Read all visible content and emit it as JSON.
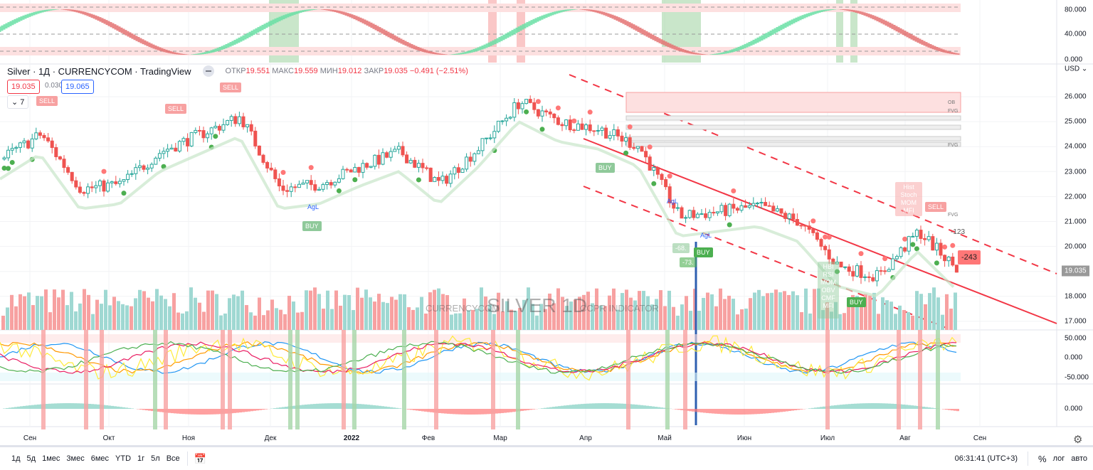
{
  "header": {
    "symbol": "Silver · 1Д · CURRENCYCOM · TradingView",
    "open_label": "ОТКР",
    "open": "19.551",
    "high_label": "МАКС",
    "high": "19.559",
    "low_label": "МИН",
    "low": "19.012",
    "close_label": "ЗАКР",
    "close": "19.035",
    "change": "−0.491 (−2.51%)"
  },
  "bid": "19.035",
  "spread": "0.030",
  "ask": "19.065",
  "indicators_collapsed": "7",
  "currency": "USD",
  "watermark": {
    "left": "CURRENCYCOM",
    "main": "SILVER 1D",
    "right": "CCPR INDICATOR"
  },
  "annotations": {
    "sell": "SELL",
    "buy": "BUY",
    "hist": "Hist Stoch MOM MFI",
    "neg243": "-243",
    "neg123": "-123",
    "fvg": "FVG",
    "ob": "OB",
    "agl": "AgL",
    "v68": "-68.",
    "v73": "-73.",
    "hist2": "HBI RSI MOM OBV CMF MFI"
  },
  "chart_data": {
    "type": "candlestick",
    "title": "Silver · 1Д · CURRENCYCOM",
    "top_axis": [
      "80.000",
      "40.000",
      "0.000"
    ],
    "price_axis": [
      "26.000",
      "25.000",
      "24.000",
      "23.000",
      "22.000",
      "21.000",
      "20.000",
      "18.000",
      "17.000"
    ],
    "price_range": [
      17,
      26
    ],
    "last_price": "19.035",
    "osc_axis": [
      "50.000",
      "0.000",
      "-50.000"
    ],
    "bottom_axis": [
      "0.000"
    ],
    "months": [
      "Сен",
      "Окт",
      "Ноя",
      "Дек",
      "2022",
      "Фев",
      "Мар",
      "Апр",
      "Май",
      "Июн",
      "Июл",
      "Авг",
      "Сен"
    ],
    "approx_close_path": [
      23.5,
      24.5,
      22.3,
      22.5,
      23.8,
      24.5,
      25.2,
      22.3,
      22.5,
      23.2,
      23.8,
      22.5,
      24.0,
      25.8,
      25.0,
      24.7,
      24.0,
      21.2,
      21.4,
      21.6,
      21.0,
      19.2,
      18.8,
      20.6,
      19.035
    ],
    "colors": {
      "up": "#26a69a",
      "down": "#ef5350",
      "trend": "#f23645"
    }
  },
  "toolbar": {
    "ranges": [
      "1д",
      "5д",
      "1мес",
      "3мес",
      "6мес",
      "YTD",
      "1г",
      "5л",
      "Все"
    ],
    "time": "06:31:41 (UTC+3)",
    "percent": "%",
    "log": "лог",
    "auto": "авто"
  }
}
